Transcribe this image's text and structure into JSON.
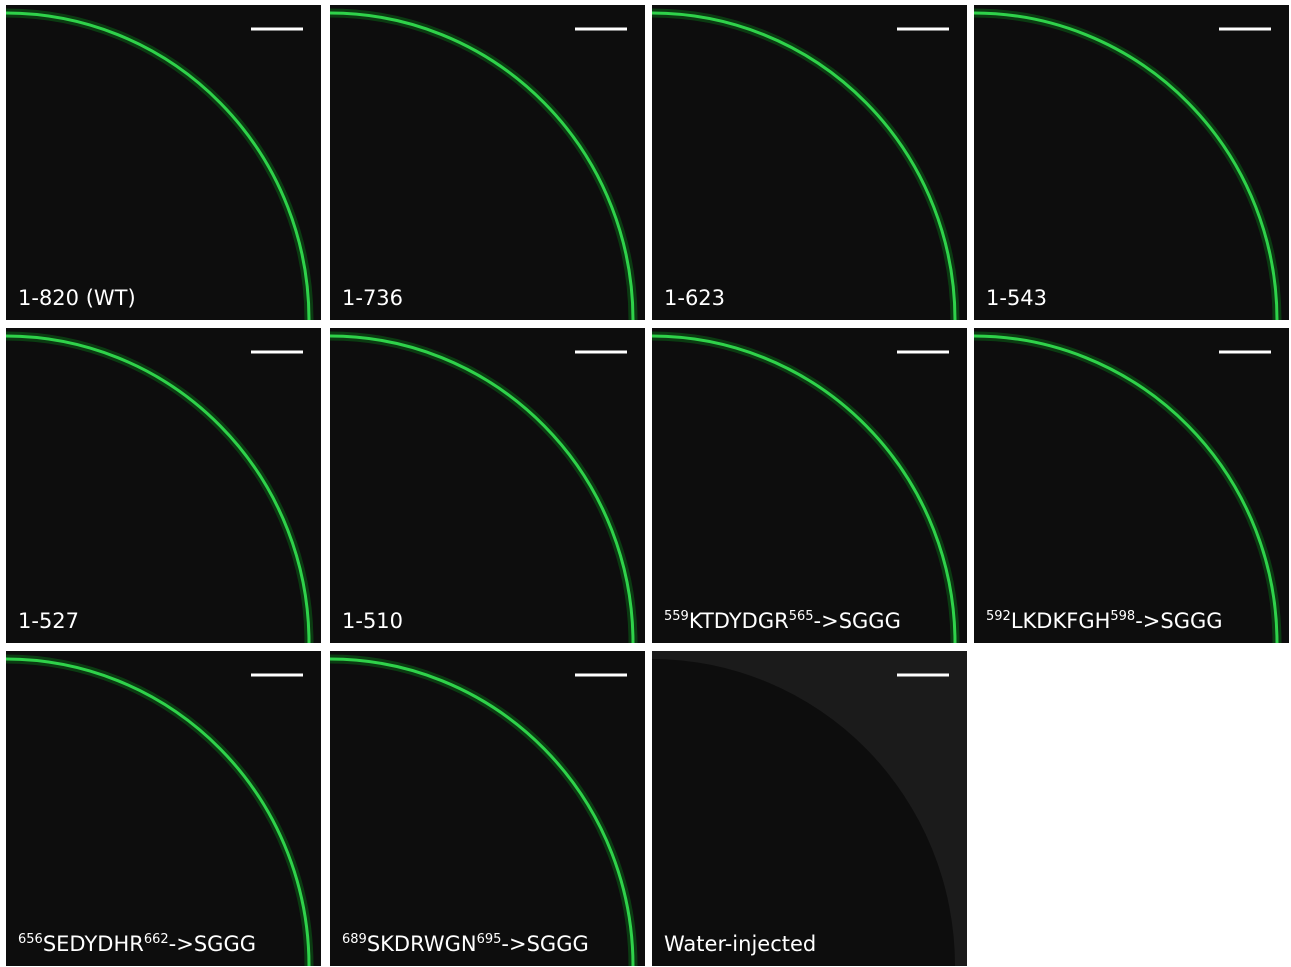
{
  "panels": [
    {
      "label": "1-820 (WT)"
    },
    {
      "label": "1-736"
    },
    {
      "label": "1-623"
    },
    {
      "label": "1-543"
    },
    {
      "label": "1-527"
    },
    {
      "label": "1-510"
    },
    {
      "label_parts": {
        "start": "559",
        "residues": "KTDYDGR",
        "end": "565",
        "change": "->SGGG"
      }
    },
    {
      "label_parts": {
        "start": "592",
        "residues": "LKDKFGH",
        "end": "598",
        "change": "->SGGG"
      }
    },
    {
      "label_parts": {
        "start": "656",
        "residues": "SEDYDHR",
        "end": "662",
        "change": "->SGGG"
      }
    },
    {
      "label_parts": {
        "start": "689",
        "residues": "SKDRWGN",
        "end": "695",
        "change": "->SGGG"
      }
    },
    {
      "label": "Water-injected"
    }
  ]
}
